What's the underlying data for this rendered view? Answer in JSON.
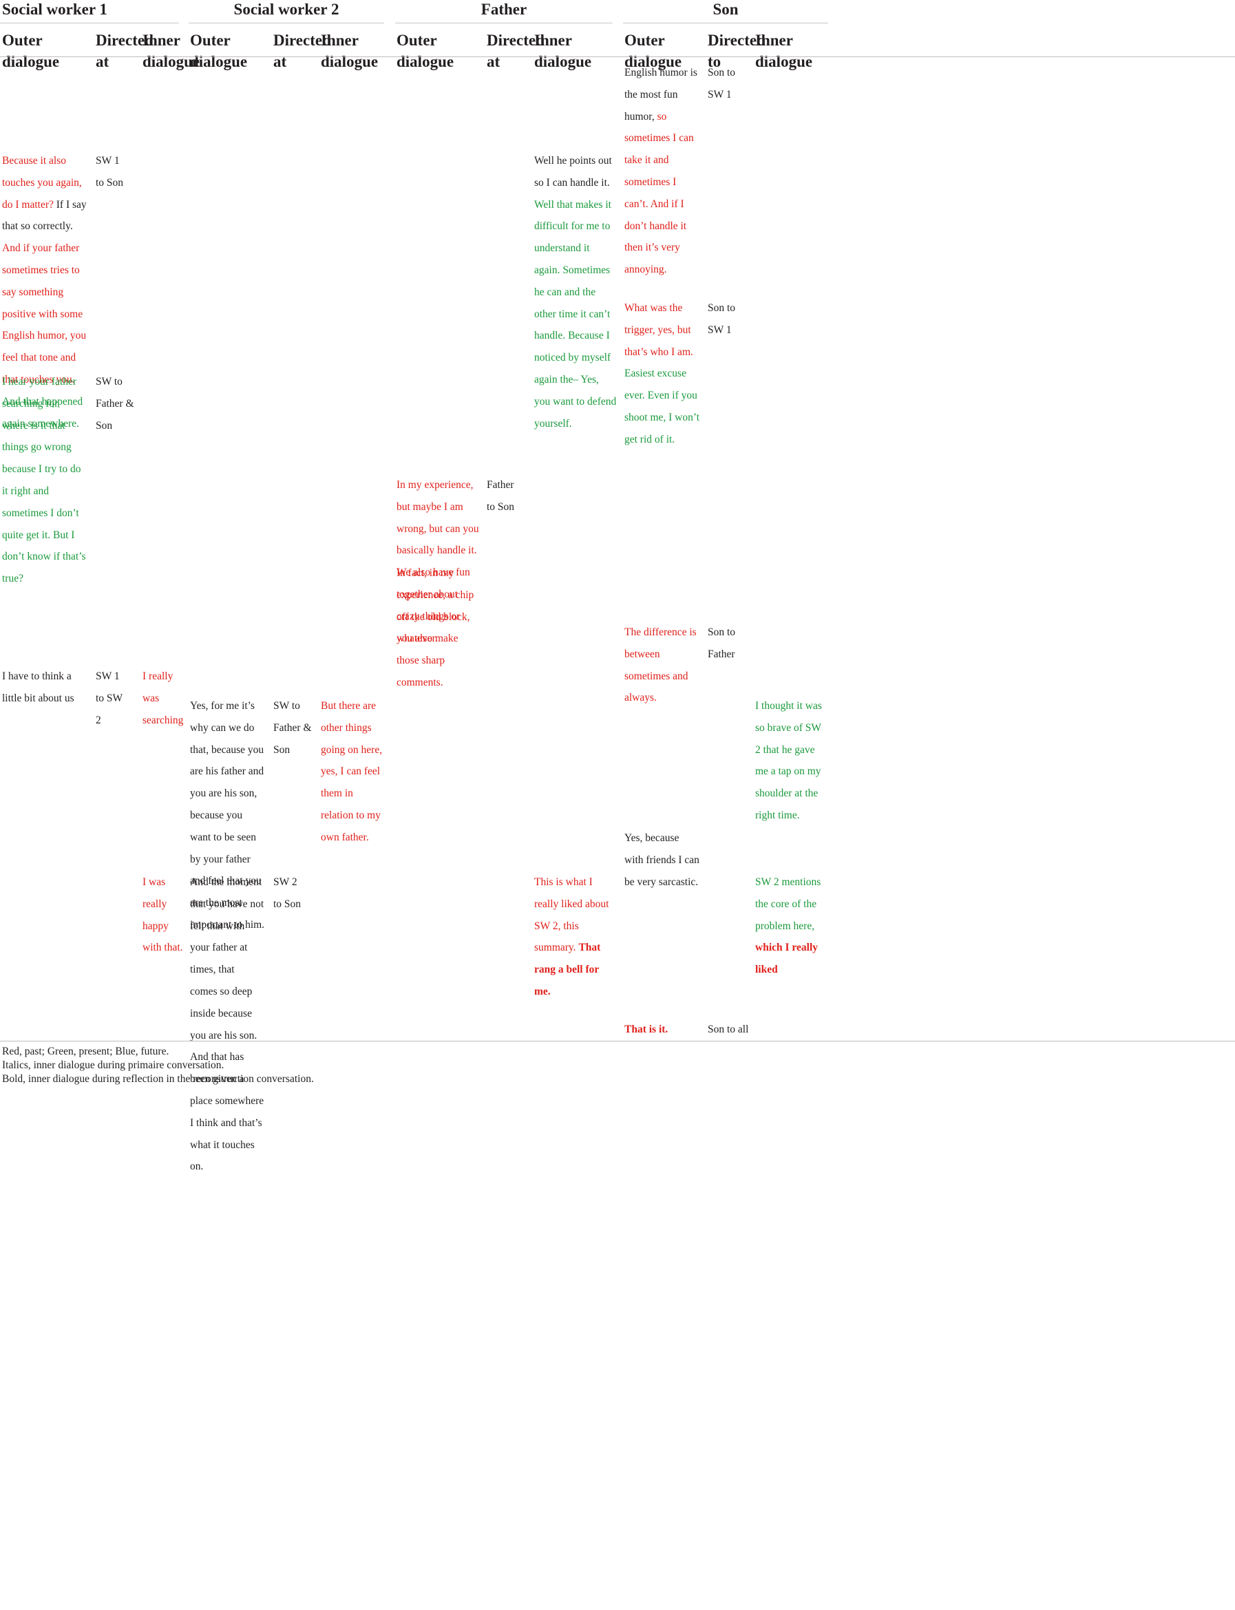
{
  "colors": {
    "past": "#e0211b",
    "present": "#1b9a3c",
    "future": "#2b64c4",
    "neutral": "#231f20"
  },
  "groups": [
    "Social worker 1",
    "Social worker 2",
    "Father",
    "Son"
  ],
  "columns": {
    "sw1": [
      "Outer dialogue",
      "Directed at",
      "Inner dialogue"
    ],
    "sw2": [
      "Outer dialogue",
      "Directed at",
      "Inner dialogue"
    ],
    "father": [
      "Outer dialogue",
      "Directed at",
      "Inner dialogue"
    ],
    "son": [
      "Outer dialogue",
      "Directed to",
      "Inner dialogue"
    ]
  },
  "rows": {
    "r1": {
      "son_outer": [
        {
          "t": "English humor is the most fun humor, ",
          "c": "black"
        },
        {
          "t": "so sometimes I can take it and sometimes I can’t. And if I don’t handle it then it’s very annoying.",
          "c": "red"
        }
      ],
      "son_dir": "Son to SW 1"
    },
    "r2": {
      "sw1_outer": [
        {
          "t": "Because it also touches you again, do I matter? ",
          "c": "red"
        },
        {
          "t": "If I say that so correctly. ",
          "c": "black"
        },
        {
          "t": "And if your father sometimes tries to say something positive with some English humor, you feel that tone and that touches you. ",
          "c": "red"
        },
        {
          "t": "And that happened again somewhere.",
          "c": "green"
        }
      ],
      "sw1_dir": "SW 1 to Son",
      "father_inner": [
        {
          "t": "Well he points out so I can handle it. ",
          "c": "black"
        },
        {
          "t": "Well that makes it difficult for me to understand it again. Sometimes he can and the other time it can’t handle. Because I noticed by myself again the– Yes, you want to defend yourself.",
          "c": "green"
        }
      ]
    },
    "r3": {
      "son_outer": [
        {
          "t": "What was the trigger, yes, but that’s who I am. ",
          "c": "red"
        },
        {
          "t": "Easiest excuse ever. Even if you shoot me, I won’t get rid of it.",
          "c": "green"
        }
      ],
      "son_dir": "Son to SW 1"
    },
    "r4": {
      "sw1_outer": [
        {
          "t": "I hear your father searching for where is it that things go wrong because I try to do it right and sometimes I don’t quite get it. But I don’t know if that’s true?",
          "c": "green"
        }
      ],
      "sw1_dir": "SW to Father & Son"
    },
    "r5": {
      "father_outer": [
        {
          "t": "In my experience, but maybe I am wrong, but can you basically handle it. We also have fun together about crazy things or whatever.",
          "c": "red"
        }
      ],
      "father_outer2": [
        {
          "t": "In fact, in my experience, a chip off the old block, you also make those sharp comments.",
          "c": "red"
        }
      ],
      "father_dir": "Father to Son"
    },
    "r6": {
      "son_outer": [
        {
          "t": "The difference is between sometimes and always.",
          "c": "red"
        }
      ],
      "son_dir": "Son to Father"
    },
    "r7": {
      "sw1_outer": [
        {
          "t": "I have to think a little bit about us",
          "c": "black"
        }
      ],
      "sw1_dir": "SW 1 to SW 2",
      "sw1_inner": [
        {
          "t": "I really was searching",
          "c": "red"
        }
      ]
    },
    "r8": {
      "sw2_outer": [
        {
          "t": "Yes, for me it’s why can we do that, because you are his father and you are his son, because you want to be seen by your father and feel that you are the most important to him.",
          "c": "black"
        }
      ],
      "sw2_dir": "SW to Father & Son",
      "sw2_inner": [
        {
          "t": "But there are other things going on here, yes, I can feel them in relation to my own father.",
          "c": "red"
        }
      ],
      "son_inner": [
        {
          "t": "I thought it was so brave of SW 2 that he gave me a tap on my shoulder at the right time.",
          "c": "green"
        }
      ]
    },
    "r9": {
      "son_outer": [
        {
          "t": "Yes, because with friends I can be very sarcastic.",
          "c": "black"
        }
      ]
    },
    "r10": {
      "sw1_inner": [
        {
          "t": "I was really happy with that.",
          "c": "red"
        }
      ],
      "sw2_outer": [
        {
          "t": "And the moment that you have not felt that with your father at times, that comes so deep inside because you are his son. And that has been given a place somewhere I think and that’s what it touches on.",
          "c": "black"
        }
      ],
      "sw2_dir": "SW 2 to Son",
      "father_inner": [
        {
          "t": "This is what I really liked about SW 2, this summary. ",
          "c": "red"
        },
        {
          "t": "That rang a bell for me.",
          "c": "red",
          "b": true
        }
      ],
      "son_inner": [
        {
          "t": "SW 2 mentions the core of the problem here, ",
          "c": "green"
        },
        {
          "t": "which I really liked",
          "c": "red",
          "b": true
        }
      ]
    },
    "r11": {
      "son_outer": [
        {
          "t": "That is it.",
          "c": "red",
          "b": true
        }
      ],
      "son_dir": "Son to all"
    }
  },
  "notes": [
    "Red, past; Green, present; Blue, future.",
    "Italics, inner dialogue during primaire conversation.",
    "Bold, inner dialogue during reflection in the reconstruction conversation."
  ]
}
